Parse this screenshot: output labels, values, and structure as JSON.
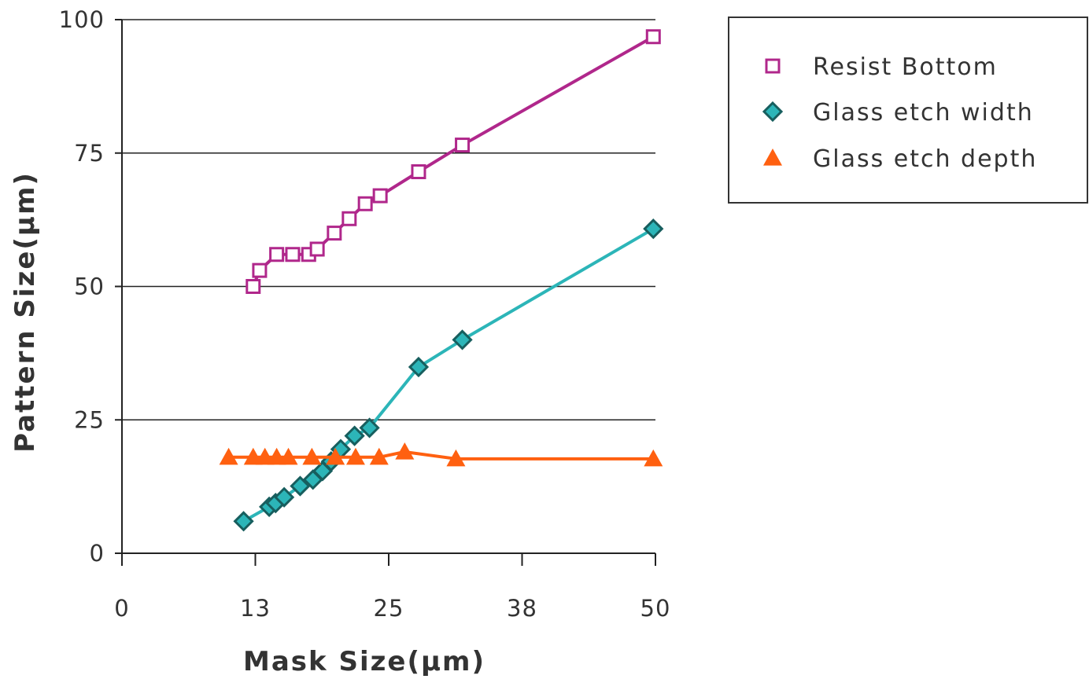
{
  "chart_data": {
    "type": "line",
    "xlabel": "Mask Size(µm)",
    "ylabel": "Pattern Size(µm)",
    "xlim": [
      0,
      50
    ],
    "ylim": [
      0,
      100
    ],
    "x_ticks": [
      0,
      12.5,
      25,
      37.5,
      50
    ],
    "x_tick_labels": [
      "0",
      "13",
      "25",
      "38",
      "50"
    ],
    "y_ticks": [
      0,
      25,
      50,
      75,
      100
    ],
    "y_tick_labels": [
      "0",
      "25",
      "50",
      "75",
      "100"
    ],
    "grid": "horizontal",
    "legend_position": "top-right, outside plot",
    "series": [
      {
        "name": "Resist Bottom",
        "color": "#b0278b",
        "marker": "open-square",
        "points": [
          [
            12.3,
            50
          ],
          [
            12.9,
            53
          ],
          [
            14.5,
            56
          ],
          [
            16.0,
            56
          ],
          [
            17.5,
            56
          ],
          [
            18.3,
            57
          ],
          [
            19.9,
            60
          ],
          [
            21.3,
            62.7
          ],
          [
            22.8,
            65.5
          ],
          [
            24.2,
            67
          ],
          [
            27.8,
            71.5
          ],
          [
            31.9,
            76.5
          ],
          [
            49.8,
            96.8
          ]
        ]
      },
      {
        "name": "Glass etch width",
        "color": "#2cb5b8",
        "marker": "diamond",
        "points": [
          [
            11.4,
            6
          ],
          [
            13.8,
            8.7
          ],
          [
            14.4,
            9.4
          ],
          [
            15.2,
            10.5
          ],
          [
            16.7,
            12.6
          ],
          [
            17.9,
            13.8
          ],
          [
            18.8,
            15.4
          ],
          [
            19.6,
            17.2
          ],
          [
            20.5,
            19.5
          ],
          [
            21.8,
            22
          ],
          [
            23.2,
            23.5
          ],
          [
            27.8,
            34.9
          ],
          [
            31.9,
            40
          ],
          [
            49.8,
            60.8
          ]
        ]
      },
      {
        "name": "Glass etch depth",
        "color": "#ff6010",
        "marker": "triangle",
        "points": [
          [
            10.0,
            18
          ],
          [
            12.3,
            18
          ],
          [
            13.4,
            18
          ],
          [
            14.5,
            18
          ],
          [
            15.6,
            18
          ],
          [
            17.8,
            18
          ],
          [
            20.0,
            18
          ],
          [
            21.9,
            18
          ],
          [
            24.1,
            18
          ],
          [
            26.5,
            19
          ],
          [
            31.3,
            17.7
          ],
          [
            49.8,
            17.7
          ]
        ]
      }
    ]
  }
}
